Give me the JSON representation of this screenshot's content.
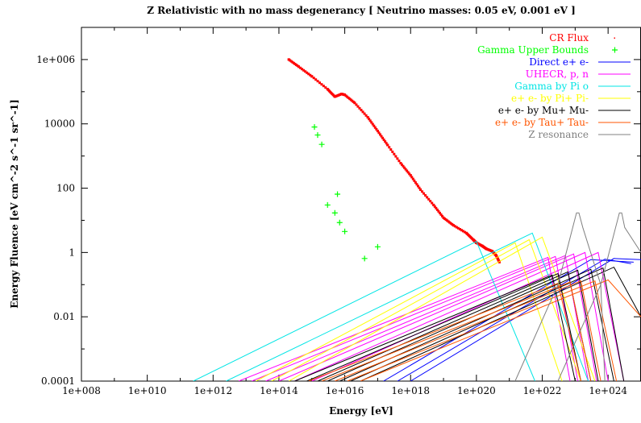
{
  "chart_data": {
    "type": "line",
    "title": "Z Relativistic with no mass degenerancy [ Neutrino masses: 0.05 eV, 0.001 eV ]",
    "xlabel": "Energy [eV]",
    "ylabel": "Energy Fluence [eV cm^-2 s^-1 sr^-1]",
    "xscale": "log",
    "yscale": "log",
    "xlim": [
      100000000.0,
      1e+25
    ],
    "ylim": [
      0.0001,
      10000000
    ],
    "x_ticks": [
      "1e+008",
      "1e+010",
      "1e+012",
      "1e+014",
      "1e+016",
      "1e+018",
      "1e+020",
      "1e+022",
      "1e+024"
    ],
    "y_ticks": [
      "0.0001",
      "0.01",
      "1",
      "100",
      "10000",
      "1e+006"
    ],
    "legend_position": "top-right",
    "grid": false,
    "series": [
      {
        "name": "CR Flux",
        "color": "#ff0000",
        "style": "points-dot",
        "points": [
          [
            200000000000000.0,
            1000000.0
          ],
          [
            400000000000000.0,
            600000.0
          ],
          [
            1000000000000000.0,
            300000.0
          ],
          [
            3000000000000000.0,
            120000.0
          ],
          [
            5000000000000000.0,
            70000.0
          ],
          [
            8000000000000000.0,
            85000.0
          ],
          [
            1e+16,
            80000.0
          ],
          [
            2e+16,
            45000.0
          ],
          [
            5e+16,
            16000.0
          ],
          [
            1e+17,
            6000
          ],
          [
            2e+17,
            2200
          ],
          [
            5e+17,
            600
          ],
          [
            1e+18,
            250
          ],
          [
            2e+18,
            90
          ],
          [
            5e+18,
            30
          ],
          [
            1e+19,
            12
          ],
          [
            2e+19,
            7
          ],
          [
            5e+19,
            4
          ],
          [
            8e+19,
            2.5
          ],
          [
            1e+20,
            2
          ],
          [
            1.5e+20,
            1.6
          ],
          [
            2e+20,
            1.3
          ],
          [
            3e+20,
            1.1
          ],
          [
            4e+20,
            0.8
          ],
          [
            5e+20,
            0.5
          ]
        ]
      },
      {
        "name": "Gamma Upper Bounds",
        "color": "#00ff00",
        "style": "points-plus",
        "points": [
          [
            1200000000000000.0,
            8000
          ],
          [
            1500000000000000.0,
            4500
          ],
          [
            2000000000000000.0,
            2300
          ],
          [
            3000000000000000.0,
            30
          ],
          [
            5000000000000000.0,
            17
          ],
          [
            6000000000000000.0,
            65
          ],
          [
            7000000000000000.0,
            8.5
          ],
          [
            1e+16,
            4.5
          ],
          [
            4e+16,
            0.65
          ],
          [
            1e+17,
            1.5
          ]
        ]
      },
      {
        "name": "Direct e+ e-",
        "color": "#0000ff",
        "style": "line",
        "lines": [
          [
            [
              1.5e+17,
              0.0001
            ],
            [
              3e+23,
              0.6
            ],
            [
              6e+24,
              0.5
            ]
          ],
          [
            [
              4e+17,
              0.0001
            ],
            [
              8e+23,
              0.62
            ],
            [
              5e+24,
              0.45
            ]
          ],
          [
            [
              1e+18,
              0.0001
            ],
            [
              1.5e+24,
              0.65
            ],
            [
              1e+25,
              0.6
            ]
          ]
        ]
      },
      {
        "name": "UHECR, p, n",
        "color": "#ff00ff",
        "style": "line",
        "lines": [
          [
            [
              6000000000000.0,
              0.0001
            ],
            [
              1.5e+22,
              0.7
            ],
            [
              7e+22,
              0.0001
            ]
          ],
          [
            [
              15000000000000.0,
              0.0001
            ],
            [
              2.5e+22,
              0.75
            ],
            [
              1.2e+23,
              0.0001
            ]
          ],
          [
            [
              40000000000000.0,
              0.0001
            ],
            [
              5e+22,
              0.8
            ],
            [
              2.5e+23,
              0.0001
            ]
          ],
          [
            [
              100000000000000.0,
              0.0001
            ],
            [
              9e+22,
              0.9
            ],
            [
              4.5e+23,
              0.0001
            ]
          ],
          [
            [
              300000000000000.0,
              0.0001
            ],
            [
              2e+23,
              1.0
            ],
            [
              1e+24,
              0.0001
            ]
          ],
          [
            [
              1000000000000000.0,
              0.0001
            ],
            [
              5e+23,
              1.0
            ],
            [
              3e+24,
              0.0001
            ]
          ]
        ]
      },
      {
        "name": "Gamma by Pi o",
        "color": "#00e5e5",
        "style": "line",
        "lines": [
          [
            [
              250000000000.0,
              0.0001
            ],
            [
              1e+20,
              2.2
            ],
            [
              6e+21,
              0.0001
            ]
          ],
          [
            [
              2500000000000.0,
              0.0001
            ],
            [
              5e+21,
              4
            ],
            [
              2.5e+23,
              0.0001
            ]
          ]
        ]
      },
      {
        "name": "e+ e- by Pi+ Pi-",
        "color": "#ffff00",
        "style": "line",
        "lines": [
          [
            [
              20000000000000.0,
              0.0001
            ],
            [
              1.5e+21,
              2
            ],
            [
              4e+22,
              0.0001
            ]
          ],
          [
            [
              60000000000000.0,
              0.0001
            ],
            [
              4e+21,
              2.5
            ],
            [
              1.5e+23,
              0.0001
            ]
          ],
          [
            [
              200000000000000.0,
              0.0001
            ],
            [
              1e+22,
              3
            ],
            [
              4e+23,
              0.0001
            ]
          ]
        ]
      },
      {
        "name": "e+ e- by Mu+ Mu-",
        "color": "#000000",
        "style": "line",
        "lines": [
          [
            [
              300000000000000.0,
              0.0001
            ],
            [
              2e+22,
              0.2
            ],
            [
              1e+23,
              0.0001
            ]
          ],
          [
            [
              700000000000000.0,
              0.0001
            ],
            [
              3e+22,
              0.22
            ],
            [
              1.5e+23,
              0.0001
            ]
          ],
          [
            [
              1500000000000000.0,
              0.0001
            ],
            [
              6e+22,
              0.25
            ],
            [
              3e+23,
              0.0001
            ]
          ],
          [
            [
              3000000000000000.0,
              0.0001
            ],
            [
              1.2e+23,
              0.28
            ],
            [
              5e+23,
              0.0001
            ]
          ],
          [
            [
              7000000000000000.0,
              0.0001
            ],
            [
              3e+23,
              0.3
            ],
            [
              1.5e+24,
              0.0001
            ]
          ],
          [
            [
              1.5e+16,
              0.0001
            ],
            [
              7e+23,
              0.33
            ],
            [
              3e+24,
              0.0001
            ]
          ],
          [
            [
              3e+16,
              0.0001
            ],
            [
              1.5e+24,
              0.35
            ],
            [
              1e+25,
              0.01
            ]
          ]
        ]
      },
      {
        "name": "e+ e- by Tau+ Tau-",
        "color": "#ff5500",
        "style": "line",
        "lines": [
          [
            [
              800000000000000.0,
              0.0001
            ],
            [
              3e+22,
              0.11
            ],
            [
              1.5e+23,
              0.0001
            ]
          ],
          [
            [
              2000000000000000.0,
              0.0001
            ],
            [
              7e+22,
              0.12
            ],
            [
              3e+23,
              0.0001
            ]
          ],
          [
            [
              5000000000000000.0,
              0.0001
            ],
            [
              1.5e+23,
              0.13
            ],
            [
              6e+23,
              0.0001
            ]
          ],
          [
            [
              1.2e+16,
              0.0001
            ],
            [
              4e+23,
              0.13
            ],
            [
              1.8e+24,
              0.0001
            ]
          ],
          [
            [
              3e+16,
              0.0001
            ],
            [
              1e+24,
              0.14
            ],
            [
              1e+25,
              0.01
            ]
          ]
        ]
      },
      {
        "name": "Z resonance",
        "color": "#808080",
        "style": "line",
        "lines": [
          [
            [
              1.5e+21,
              0.0001
            ],
            [
              3e+22,
              0.1
            ],
            [
              1.1e+23,
              17
            ],
            [
              1.3e+23,
              17
            ],
            [
              1.7e+23,
              6
            ],
            [
              6e+23,
              0.1
            ],
            [
              8e+23,
              0.0001
            ]
          ],
          [
            [
              3e+22,
              0.0001
            ],
            [
              6e+23,
              0.1
            ],
            [
              2.2e+24,
              17
            ],
            [
              2.6e+24,
              17
            ],
            [
              3.2e+24,
              6
            ],
            [
              1e+25,
              1
            ]
          ]
        ]
      }
    ]
  }
}
